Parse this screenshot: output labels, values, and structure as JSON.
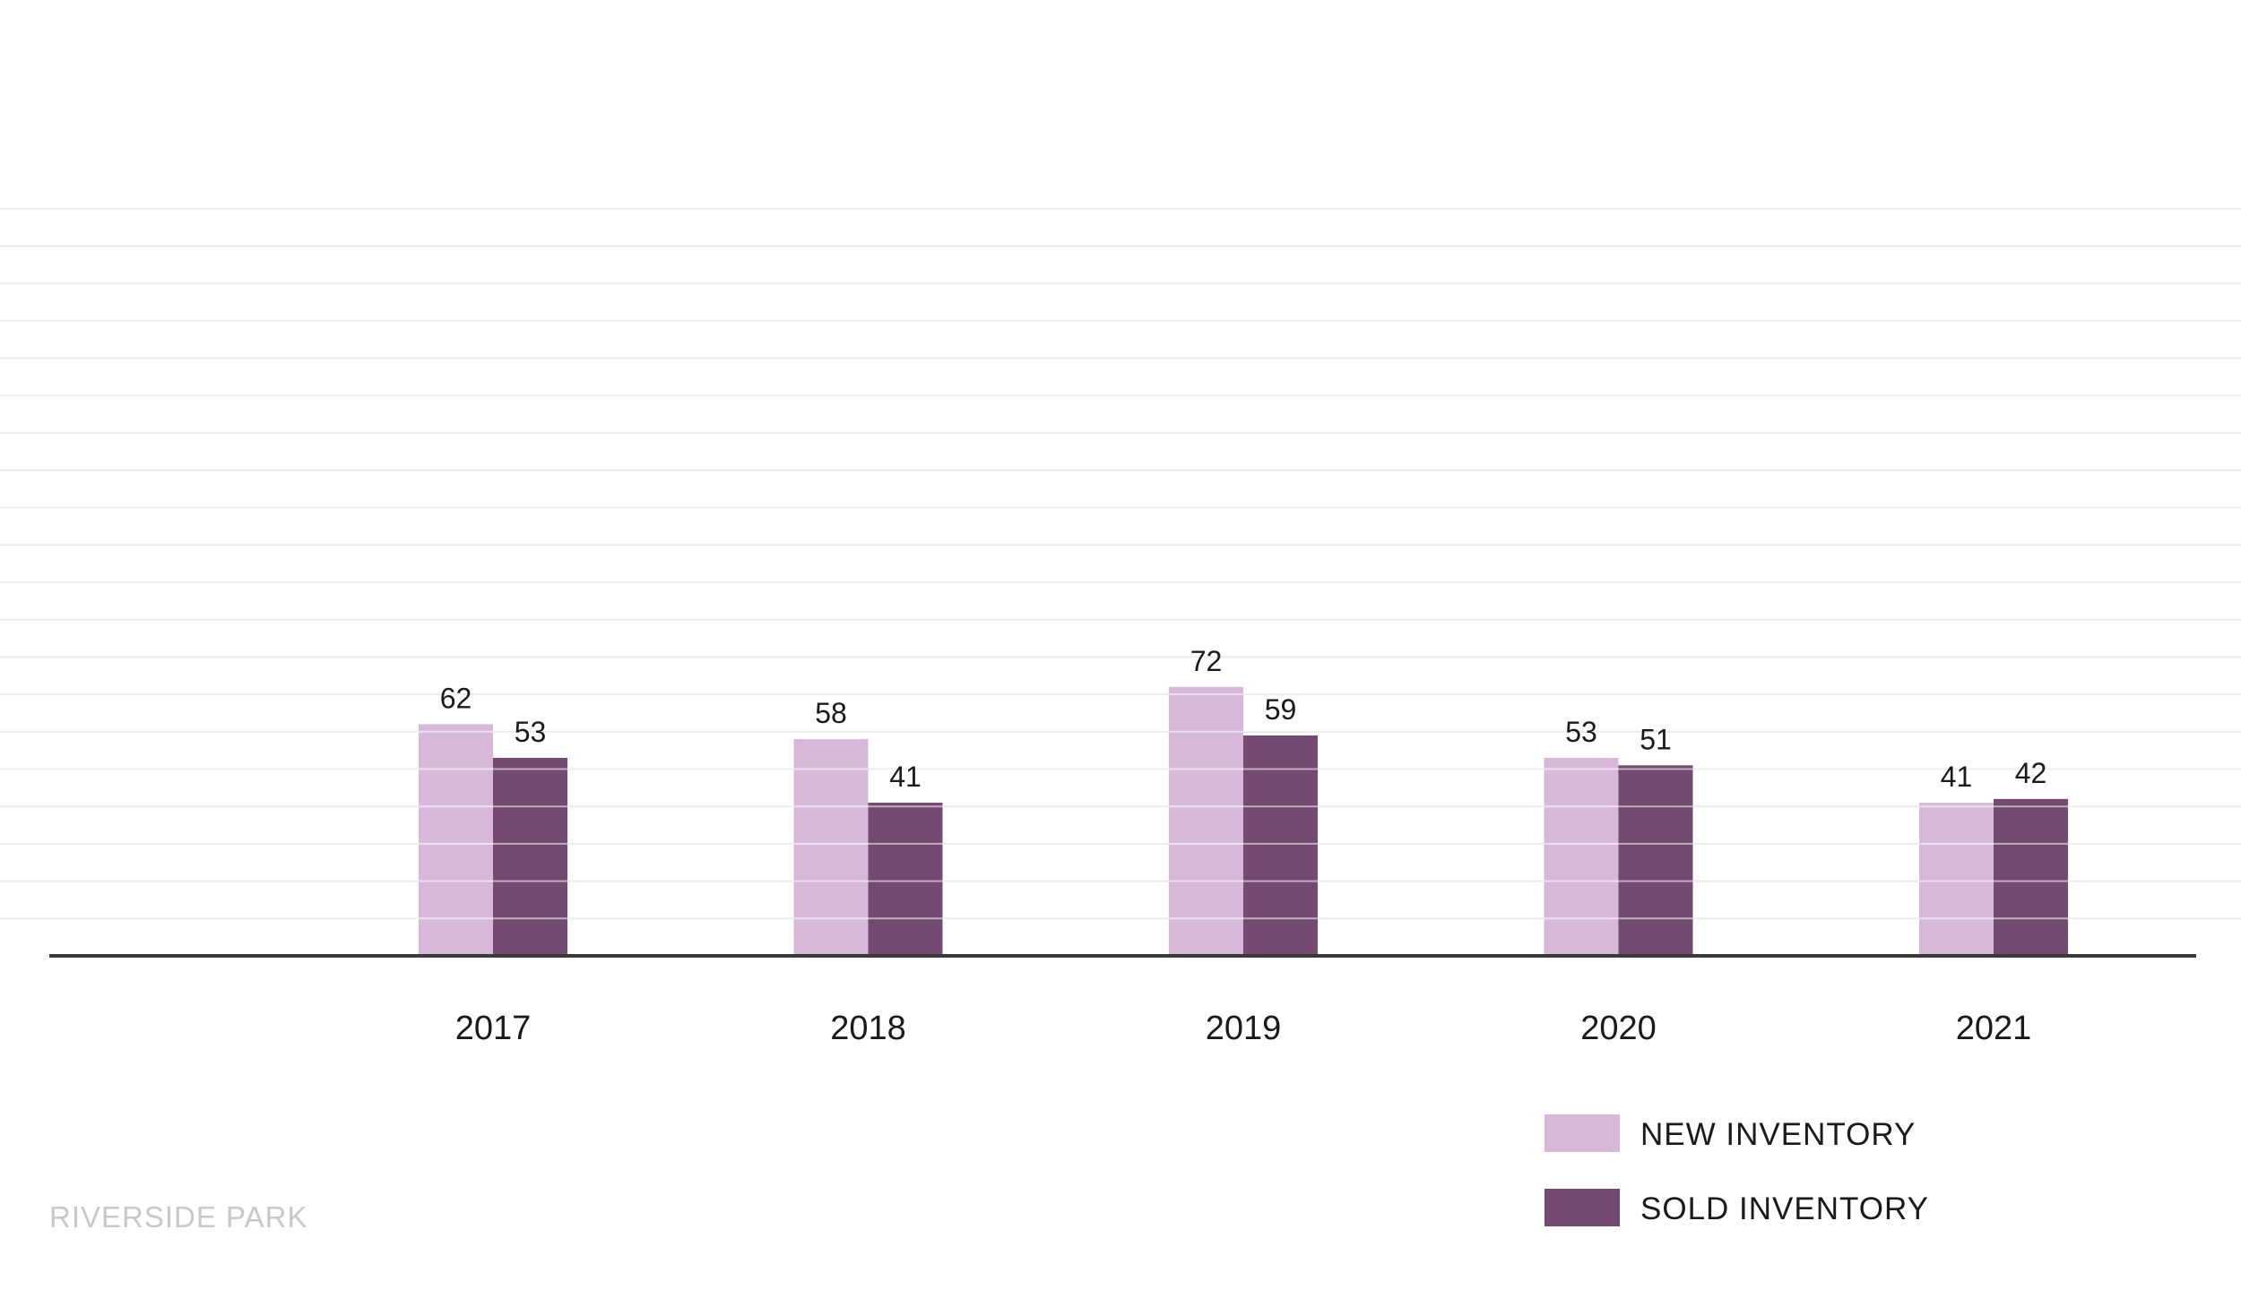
{
  "footer_label": "RIVERSIDE PARK",
  "chart_data": {
    "type": "bar",
    "categories": [
      "2017",
      "2018",
      "2019",
      "2020",
      "2021"
    ],
    "series": [
      {
        "name": "NEW INVENTORY",
        "values": [
          62,
          58,
          72,
          53,
          41
        ],
        "color": "#d7b8d8"
      },
      {
        "name": "SOLD INVENTORY",
        "values": [
          53,
          41,
          59,
          51,
          42
        ],
        "color": "#744a73"
      }
    ],
    "ylim": [
      0,
      200
    ],
    "grid": true,
    "data_labels": true,
    "legend_position": "bottom-right"
  }
}
